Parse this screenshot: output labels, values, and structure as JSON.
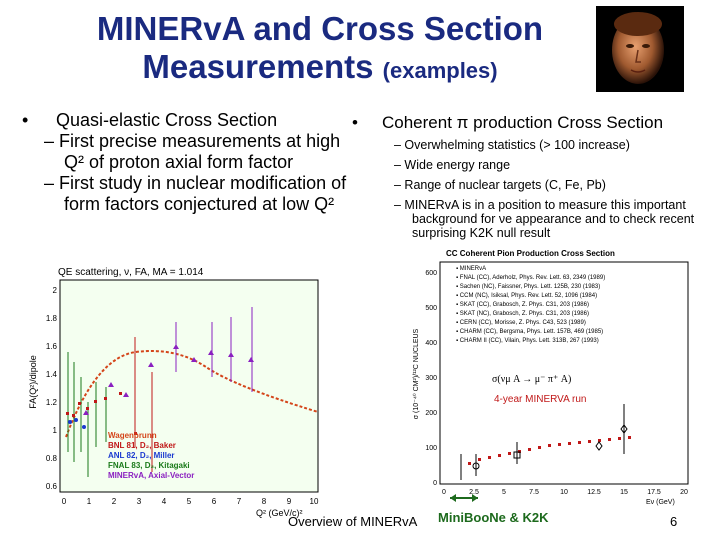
{
  "title": {
    "line1": "MINERvA and Cross Section",
    "line2": "Measurements",
    "line2_small": "(examples)"
  },
  "left": {
    "bullet": "Quasi-elastic Cross Section",
    "sub1": "– First precise measurements at high Q² of proton axial form factor",
    "sub2": "– First study in nuclear modification of form factors conjectured at low Q²"
  },
  "right": {
    "bullet": "Coherent π production Cross Section",
    "sub1": "–  Overwhelming statistics (> 100 increase)",
    "sub2": "–  Wide energy range",
    "sub3": "–  Range of nuclear targets (C, Fe, Pb)",
    "sub4": "–  MINERvA is in a position to measure this important background for νe appearance and to check recent surprising K2K null result"
  },
  "plot_left": {
    "title": "QE scattering, ν, FA, MA = 1.014",
    "ylabel": "FA(Q²)/dipole",
    "xlabel": "Q² (GeV/c)²",
    "xticks": [
      "0",
      "1",
      "2",
      "3",
      "4",
      "5",
      "6",
      "7",
      "8",
      "9",
      "10"
    ],
    "yticks": [
      "0.6",
      "0.8",
      "1",
      "1.2",
      "1.4",
      "1.6",
      "1.8",
      "2"
    ],
    "legend": [
      "Wagenbrunn",
      "BNL 81, D₂, Baker",
      "ANL 82, D₂, Miller",
      "FNAL 83, D₂, Kitagaki",
      "MINERvA, Axial-Vector"
    ]
  },
  "plot_right": {
    "title": "CC Coherent Pion Production Cross Section",
    "ylabel": "σ (10⁻⁴⁰ CM²)/¹²C NUCLEUS",
    "xlabel": "Eν (GeV)",
    "yticks": [
      "0",
      "100",
      "200",
      "300",
      "400",
      "500",
      "600"
    ],
    "xticks": [
      "0",
      "2.5",
      "5",
      "7.5",
      "10",
      "12.5",
      "15",
      "17.5",
      "20"
    ],
    "legend": [
      "MINERvA",
      "FNAL (CC), Aderholz, Phys. Rev. Lett. 63, 2349 (1989)",
      "Sachen (NC), Faissner, Phys. Lett. 125B, 230 (1983)",
      "CCM (NC), Isiksal, Phys. Rev. Lett. 52, 1096 (1984)",
      "SKAT (CC), Grabosch, Z. Phys. C31, 203 (1986)",
      "SKAT (NC), Grabosch, Z. Phys. C31, 203 (1986)",
      "CERN (CC), Morisse, Z. Phys. C43, 523 (1989)",
      "CHARM (CC), Bergsma, Phys. Lett. 157B, 469 (1985)",
      "CHARM II (CC), Vilain, Phys. Lett. 313B, 267 (1993)"
    ],
    "formula": "σ(νμ A → μ⁻ π⁺ A)",
    "annotation": "4-year MINERVA run"
  },
  "footer": {
    "text": "Overview of MINERvA",
    "k2k": "MiniBooNe & K2K",
    "page": "6"
  }
}
